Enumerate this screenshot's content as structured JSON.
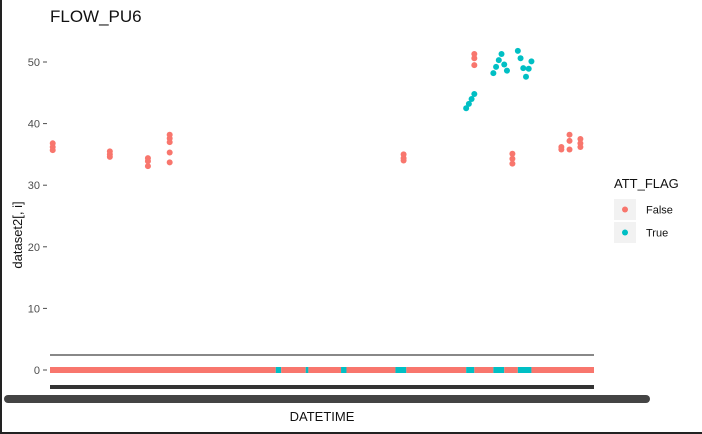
{
  "chart_data": {
    "type": "scatter",
    "title": "FLOW_PU6",
    "xlabel": "DATETIME",
    "ylabel": "dataset2[, i]",
    "ylim": [
      -2,
      55
    ],
    "yticks": [
      0,
      10,
      20,
      30,
      40,
      50
    ],
    "grid": false,
    "legend": {
      "title": "ATT_FLAG",
      "position": "right",
      "entries": [
        {
          "label": "False",
          "color": "#F8766D"
        },
        {
          "label": "True",
          "color": "#00BFC4"
        }
      ]
    },
    "series": [
      {
        "name": "False",
        "color": "#F8766D",
        "points": [
          [
            0.005,
            36.8
          ],
          [
            0.005,
            36.2
          ],
          [
            0.005,
            35.7
          ],
          [
            0.11,
            35.5
          ],
          [
            0.11,
            35.0
          ],
          [
            0.11,
            34.6
          ],
          [
            0.18,
            34.4
          ],
          [
            0.18,
            33.9
          ],
          [
            0.18,
            33.1
          ],
          [
            0.22,
            38.2
          ],
          [
            0.22,
            37.6
          ],
          [
            0.22,
            37.0
          ],
          [
            0.22,
            35.3
          ],
          [
            0.22,
            33.7
          ],
          [
            0.65,
            35.0
          ],
          [
            0.65,
            34.4
          ],
          [
            0.65,
            34.0
          ],
          [
            0.78,
            51.3
          ],
          [
            0.78,
            50.6
          ],
          [
            0.78,
            49.5
          ],
          [
            0.85,
            35.1
          ],
          [
            0.85,
            34.3
          ],
          [
            0.85,
            33.5
          ],
          [
            0.94,
            36.2
          ],
          [
            0.94,
            35.8
          ],
          [
            0.955,
            38.2
          ],
          [
            0.955,
            37.2
          ],
          [
            0.955,
            35.8
          ],
          [
            0.975,
            37.5
          ],
          [
            0.975,
            36.8
          ],
          [
            0.975,
            36.2
          ]
        ]
      },
      {
        "name": "True",
        "color": "#00BFC4",
        "points": [
          [
            0.765,
            42.5
          ],
          [
            0.77,
            43.2
          ],
          [
            0.775,
            44.0
          ],
          [
            0.78,
            44.8
          ],
          [
            0.815,
            48.2
          ],
          [
            0.82,
            49.2
          ],
          [
            0.825,
            50.3
          ],
          [
            0.83,
            51.3
          ],
          [
            0.835,
            49.6
          ],
          [
            0.84,
            48.6
          ],
          [
            0.86,
            51.8
          ],
          [
            0.865,
            50.6
          ],
          [
            0.87,
            49.0
          ],
          [
            0.875,
            47.6
          ],
          [
            0.88,
            48.9
          ],
          [
            0.885,
            50.1
          ]
        ]
      }
    ],
    "baseline": {
      "y": 0,
      "segments": [
        {
          "flag": "False",
          "x0": 0.0,
          "x1": 0.415
        },
        {
          "flag": "True",
          "x0": 0.415,
          "x1": 0.425
        },
        {
          "flag": "False",
          "x0": 0.425,
          "x1": 0.47
        },
        {
          "flag": "True",
          "x0": 0.47,
          "x1": 0.475
        },
        {
          "flag": "False",
          "x0": 0.475,
          "x1": 0.535
        },
        {
          "flag": "True",
          "x0": 0.535,
          "x1": 0.545
        },
        {
          "flag": "False",
          "x0": 0.545,
          "x1": 0.635
        },
        {
          "flag": "True",
          "x0": 0.635,
          "x1": 0.655
        },
        {
          "flag": "False",
          "x0": 0.655,
          "x1": 0.765
        },
        {
          "flag": "True",
          "x0": 0.765,
          "x1": 0.78
        },
        {
          "flag": "False",
          "x0": 0.78,
          "x1": 0.815
        },
        {
          "flag": "True",
          "x0": 0.815,
          "x1": 0.835
        },
        {
          "flag": "False",
          "x0": 0.835,
          "x1": 0.86
        },
        {
          "flag": "True",
          "x0": 0.86,
          "x1": 0.885
        },
        {
          "flag": "False",
          "x0": 0.885,
          "x1": 1.0
        }
      ]
    }
  }
}
